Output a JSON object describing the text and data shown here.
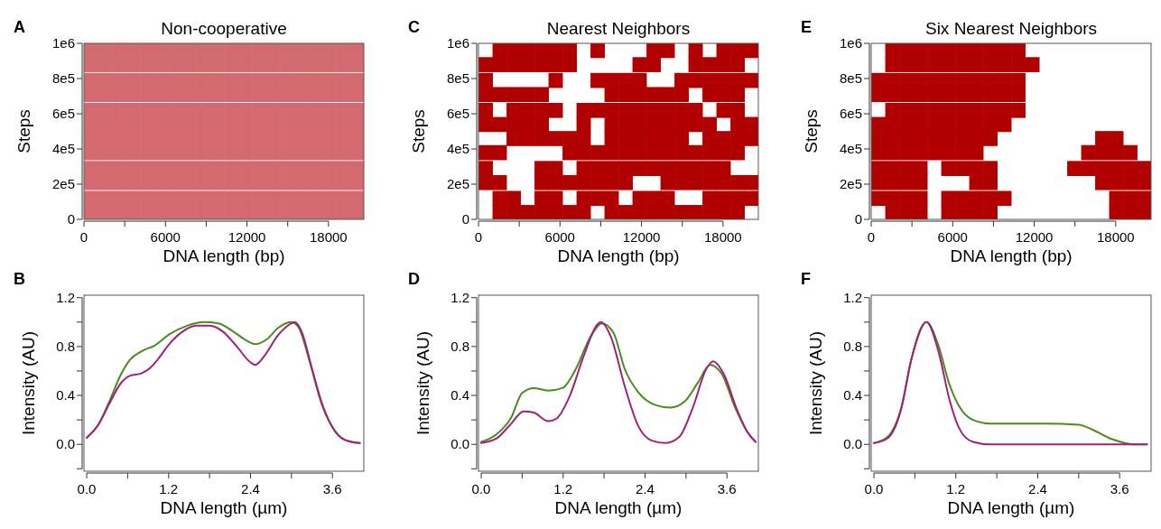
{
  "chart_data": [
    {
      "type": "scatter",
      "marker": "square",
      "title": "Non-cooperative",
      "xlabel": "DNA length (bp)",
      "ylabel": "Steps",
      "annotations": [
        "A"
      ],
      "xlim": [
        0,
        20600
      ],
      "ylim": [
        0,
        1000000
      ],
      "xticks": [
        0,
        {
          "value": 3000,
          "label": null
        },
        6000,
        {
          "value": 9000,
          "label": null
        },
        12000,
        {
          "value": 15000,
          "label": null
        },
        18000
      ],
      "yticks": [
        0,
        {
          "value": 200000,
          "label": "2e5"
        },
        {
          "value": 400000,
          "label": "4e5"
        },
        {
          "value": 600000,
          "label": "6e5"
        },
        {
          "value": 800000,
          "label": "8e5"
        },
        {
          "value": 1000000,
          "label": "1e6"
        }
      ],
      "x": [
        520,
        1550,
        2580,
        3610,
        4640,
        5670,
        6700,
        7730,
        8760,
        9790,
        10820,
        11850,
        12880,
        13910,
        14940,
        15970,
        17000,
        18030,
        19060,
        20090
      ],
      "series": [
        {
          "color": "#d26a70",
          "values": [
            960000,
            960000,
            960000,
            960000,
            960000,
            960000,
            960000,
            960000,
            960000,
            960000,
            960000,
            960000,
            960000,
            960000,
            960000,
            960000,
            960000,
            960000,
            960000,
            960000
          ]
        },
        {
          "color": "#d26a70",
          "values": [
            880000,
            880000,
            880000,
            880000,
            880000,
            880000,
            880000,
            880000,
            880000,
            880000,
            880000,
            880000,
            880000,
            880000,
            880000,
            880000,
            880000,
            880000,
            880000,
            880000
          ]
        },
        {
          "color": "#d26a70",
          "values": [
            790000,
            790000,
            790000,
            790000,
            790000,
            790000,
            790000,
            790000,
            790000,
            790000,
            790000,
            790000,
            790000,
            790000,
            790000,
            790000,
            790000,
            790000,
            790000,
            790000
          ]
        },
        {
          "color": "#d26a70",
          "values": [
            710000,
            710000,
            710000,
            710000,
            710000,
            710000,
            710000,
            710000,
            710000,
            710000,
            710000,
            710000,
            710000,
            710000,
            710000,
            710000,
            710000,
            710000,
            710000,
            710000
          ]
        },
        {
          "color": "#d26a70",
          "values": [
            620000,
            620000,
            620000,
            620000,
            620000,
            620000,
            620000,
            620000,
            620000,
            620000,
            620000,
            620000,
            620000,
            620000,
            620000,
            620000,
            620000,
            620000,
            620000,
            620000
          ]
        },
        {
          "color": "#d26a70",
          "values": [
            540000,
            540000,
            540000,
            540000,
            540000,
            540000,
            540000,
            540000,
            540000,
            540000,
            540000,
            540000,
            540000,
            540000,
            540000,
            540000,
            540000,
            540000,
            540000,
            540000
          ]
        },
        {
          "color": "#d26a70",
          "values": [
            460000,
            460000,
            460000,
            460000,
            460000,
            460000,
            460000,
            460000,
            460000,
            460000,
            460000,
            460000,
            460000,
            460000,
            460000,
            460000,
            460000,
            460000,
            460000,
            460000
          ]
        },
        {
          "color": "#d26a70",
          "values": [
            380000,
            380000,
            380000,
            380000,
            380000,
            380000,
            380000,
            380000,
            380000,
            380000,
            380000,
            380000,
            380000,
            380000,
            380000,
            380000,
            380000,
            380000,
            380000,
            380000
          ]
        },
        {
          "color": "#d26a70",
          "values": [
            290000,
            290000,
            290000,
            290000,
            290000,
            290000,
            290000,
            290000,
            290000,
            290000,
            290000,
            290000,
            290000,
            290000,
            290000,
            290000,
            290000,
            290000,
            290000,
            290000
          ]
        },
        {
          "color": "#d26a70",
          "values": [
            210000,
            210000,
            210000,
            210000,
            210000,
            210000,
            210000,
            210000,
            210000,
            210000,
            210000,
            210000,
            210000,
            210000,
            210000,
            210000,
            210000,
            210000,
            210000,
            210000
          ]
        },
        {
          "color": "#d26a70",
          "values": [
            120000,
            120000,
            120000,
            120000,
            120000,
            120000,
            120000,
            120000,
            120000,
            120000,
            120000,
            120000,
            120000,
            120000,
            120000,
            120000,
            120000,
            120000,
            120000,
            120000
          ]
        },
        {
          "color": "#d26a70",
          "values": [
            40000,
            40000,
            40000,
            40000,
            40000,
            40000,
            40000,
            40000,
            40000,
            40000,
            40000,
            40000,
            40000,
            40000,
            40000,
            40000,
            40000,
            40000,
            40000,
            40000
          ]
        }
      ]
    },
    {
      "type": "scatter",
      "marker": "square",
      "title": "Nearest Neighbors",
      "xlabel": "DNA length (bp)",
      "ylabel": "Steps",
      "annotations": [
        "C"
      ],
      "xlim": [
        0,
        20600
      ],
      "ylim": [
        0,
        1000000
      ],
      "xticks": [
        0,
        {
          "value": 3000,
          "label": null
        },
        6000,
        {
          "value": 9000,
          "label": null
        },
        12000,
        {
          "value": 15000,
          "label": null
        },
        18000
      ],
      "yticks": [
        0,
        {
          "value": 200000,
          "label": "2e5"
        },
        {
          "value": 400000,
          "label": "4e5"
        },
        {
          "value": 600000,
          "label": "6e5"
        },
        {
          "value": 800000,
          "label": "8e5"
        },
        {
          "value": 1000000,
          "label": "1e6"
        }
      ],
      "series": [
        {
          "color": "#b00000",
          "x": [
            1550,
            2580,
            3610,
            4640,
            5670,
            6700,
            8760,
            12880,
            13910,
            15970,
            18030,
            19060,
            20090
          ],
          "values": [
            960000,
            960000,
            960000,
            960000,
            960000,
            960000,
            960000,
            960000,
            960000,
            960000,
            960000,
            960000,
            960000
          ]
        },
        {
          "color": "#b00000",
          "x": [
            520,
            1550,
            2580,
            3610,
            4640,
            5670,
            6700,
            11850,
            12880,
            15970,
            17000,
            18030,
            19060
          ],
          "values": [
            880000,
            880000,
            880000,
            880000,
            880000,
            880000,
            880000,
            880000,
            880000,
            880000,
            880000,
            880000,
            880000
          ]
        },
        {
          "color": "#b00000",
          "x": [
            520,
            5670,
            8760,
            9790,
            10820,
            11850,
            14940,
            15970,
            17000,
            18030,
            19060,
            20090
          ],
          "values": [
            790000,
            790000,
            790000,
            790000,
            790000,
            790000,
            790000,
            790000,
            790000,
            790000,
            790000,
            790000
          ]
        },
        {
          "color": "#b00000",
          "x": [
            520,
            1550,
            2580,
            3610,
            4640,
            9790,
            10820,
            11850,
            12880,
            13910,
            14940,
            17000,
            18030,
            19060
          ],
          "values": [
            710000,
            710000,
            710000,
            710000,
            710000,
            710000,
            710000,
            710000,
            710000,
            710000,
            710000,
            710000,
            710000,
            710000
          ]
        },
        {
          "color": "#b00000",
          "x": [
            520,
            2580,
            3610,
            4640,
            5670,
            7730,
            8760,
            9790,
            10820,
            11850,
            12880,
            13910,
            14940,
            15970,
            18030,
            19060
          ],
          "values": [
            620000,
            620000,
            620000,
            620000,
            620000,
            620000,
            620000,
            620000,
            620000,
            620000,
            620000,
            620000,
            620000,
            620000,
            620000,
            620000
          ]
        },
        {
          "color": "#b00000",
          "x": [
            520,
            1550,
            2580,
            3610,
            4640,
            7730,
            9790,
            10820,
            11850,
            12880,
            13910,
            14940,
            15970,
            17000,
            19060,
            20090
          ],
          "values": [
            540000,
            540000,
            540000,
            540000,
            540000,
            540000,
            540000,
            540000,
            540000,
            540000,
            540000,
            540000,
            540000,
            540000,
            540000,
            540000
          ]
        },
        {
          "color": "#b00000",
          "x": [
            2580,
            3610,
            4640,
            5670,
            6700,
            7730,
            9790,
            10820,
            11850,
            12880,
            13910,
            14940,
            17000,
            18030,
            19060,
            20090
          ],
          "values": [
            460000,
            460000,
            460000,
            460000,
            460000,
            460000,
            460000,
            460000,
            460000,
            460000,
            460000,
            460000,
            460000,
            460000,
            460000,
            460000
          ]
        },
        {
          "color": "#b00000",
          "x": [
            520,
            1550,
            6700,
            7730,
            8760,
            9790,
            10820,
            11850,
            12880,
            13910,
            14940,
            15970,
            17000,
            18030,
            19060
          ],
          "values": [
            380000,
            380000,
            380000,
            380000,
            380000,
            380000,
            380000,
            380000,
            380000,
            380000,
            380000,
            380000,
            380000,
            380000,
            380000
          ]
        },
        {
          "color": "#b00000",
          "x": [
            520,
            4640,
            5670,
            7730,
            8760,
            9790,
            10820,
            11850,
            12880,
            13910,
            14940,
            15970,
            17000,
            18030
          ],
          "values": [
            290000,
            290000,
            290000,
            290000,
            290000,
            290000,
            290000,
            290000,
            290000,
            290000,
            290000,
            290000,
            290000,
            290000
          ]
        },
        {
          "color": "#b00000",
          "x": [
            520,
            1550,
            4640,
            5670,
            6700,
            7730,
            8760,
            9790,
            10820,
            13910,
            14940,
            15970,
            17000,
            18030,
            19060,
            20090
          ],
          "values": [
            210000,
            210000,
            210000,
            210000,
            210000,
            210000,
            210000,
            210000,
            210000,
            210000,
            210000,
            210000,
            210000,
            210000,
            210000,
            210000
          ]
        },
        {
          "color": "#b00000",
          "x": [
            1550,
            2580,
            4640,
            5670,
            7730,
            8760,
            9790,
            11850,
            12880,
            13910,
            17000,
            18030,
            19060,
            20090
          ],
          "values": [
            120000,
            120000,
            120000,
            120000,
            120000,
            120000,
            120000,
            120000,
            120000,
            120000,
            120000,
            120000,
            120000,
            120000
          ]
        },
        {
          "color": "#b00000",
          "x": [
            1550,
            2580,
            3610,
            4640,
            5670,
            6700,
            7730,
            9790,
            10820,
            11850,
            12880,
            13910,
            14940,
            15970,
            17000,
            18030,
            19060
          ],
          "values": [
            40000,
            40000,
            40000,
            40000,
            40000,
            40000,
            40000,
            40000,
            40000,
            40000,
            40000,
            40000,
            40000,
            40000,
            40000,
            40000,
            40000
          ]
        }
      ]
    },
    {
      "type": "scatter",
      "marker": "square",
      "title": "Six Nearest Neighbors",
      "xlabel": "DNA length (bp)",
      "ylabel": "Steps",
      "annotations": [
        "E"
      ],
      "xlim": [
        0,
        20600
      ],
      "ylim": [
        0,
        1000000
      ],
      "xticks": [
        0,
        {
          "value": 3000,
          "label": null
        },
        6000,
        {
          "value": 9000,
          "label": null
        },
        12000,
        {
          "value": 15000,
          "label": null
        },
        18000
      ],
      "yticks": [
        0,
        {
          "value": 200000,
          "label": "2e5"
        },
        {
          "value": 400000,
          "label": "4e5"
        },
        {
          "value": 600000,
          "label": "6e5"
        },
        {
          "value": 800000,
          "label": "8e5"
        },
        {
          "value": 1000000,
          "label": "1e6"
        }
      ],
      "series": [
        {
          "color": "#b00000",
          "x": [
            1550,
            2580,
            3610,
            4640,
            5670,
            6700,
            7730,
            8760,
            9790,
            10820
          ],
          "values": [
            960000,
            960000,
            960000,
            960000,
            960000,
            960000,
            960000,
            960000,
            960000,
            960000
          ]
        },
        {
          "color": "#b00000",
          "x": [
            1550,
            2580,
            3610,
            4640,
            5670,
            6700,
            7730,
            8760,
            9790,
            10820,
            11850
          ],
          "values": [
            880000,
            880000,
            880000,
            880000,
            880000,
            880000,
            880000,
            880000,
            880000,
            880000,
            880000
          ]
        },
        {
          "color": "#b00000",
          "x": [
            520,
            1550,
            2580,
            3610,
            4640,
            5670,
            6700,
            7730,
            8760,
            9790,
            10820
          ],
          "values": [
            790000,
            790000,
            790000,
            790000,
            790000,
            790000,
            790000,
            790000,
            790000,
            790000,
            790000
          ]
        },
        {
          "color": "#b00000",
          "x": [
            520,
            1550,
            2580,
            3610,
            4640,
            5670,
            6700,
            7730,
            8760,
            9790,
            10820
          ],
          "values": [
            710000,
            710000,
            710000,
            710000,
            710000,
            710000,
            710000,
            710000,
            710000,
            710000,
            710000
          ]
        },
        {
          "color": "#b00000",
          "x": [
            1550,
            2580,
            3610,
            4640,
            5670,
            6700,
            7730,
            8760,
            9790,
            10820
          ],
          "values": [
            620000,
            620000,
            620000,
            620000,
            620000,
            620000,
            620000,
            620000,
            620000,
            620000
          ]
        },
        {
          "color": "#b00000",
          "x": [
            520,
            1550,
            2580,
            3610,
            4640,
            5670,
            6700,
            7730,
            8760,
            9790
          ],
          "values": [
            540000,
            540000,
            540000,
            540000,
            540000,
            540000,
            540000,
            540000,
            540000,
            540000
          ]
        },
        {
          "color": "#b00000",
          "x": [
            520,
            1550,
            2580,
            3610,
            4640,
            5670,
            6700,
            7730,
            8760,
            17000,
            18030
          ],
          "values": [
            460000,
            460000,
            460000,
            460000,
            460000,
            460000,
            460000,
            460000,
            460000,
            460000,
            460000
          ]
        },
        {
          "color": "#b00000",
          "x": [
            520,
            1550,
            2580,
            3610,
            4640,
            5670,
            6700,
            7730,
            15970,
            17000,
            18030,
            19060
          ],
          "values": [
            380000,
            380000,
            380000,
            380000,
            380000,
            380000,
            380000,
            380000,
            380000,
            380000,
            380000,
            380000
          ]
        },
        {
          "color": "#b00000",
          "x": [
            520,
            1550,
            2580,
            3610,
            5670,
            6700,
            7730,
            8760,
            14940,
            15970,
            17000,
            18030,
            19060,
            20090
          ],
          "values": [
            290000,
            290000,
            290000,
            290000,
            290000,
            290000,
            290000,
            290000,
            290000,
            290000,
            290000,
            290000,
            290000,
            290000
          ]
        },
        {
          "color": "#b00000",
          "x": [
            520,
            1550,
            2580,
            3610,
            7730,
            8760,
            17000,
            18030,
            19060,
            20090
          ],
          "values": [
            210000,
            210000,
            210000,
            210000,
            210000,
            210000,
            210000,
            210000,
            210000,
            210000
          ]
        },
        {
          "color": "#b00000",
          "x": [
            520,
            1550,
            2580,
            3610,
            5670,
            6700,
            7730,
            8760,
            9790,
            18030,
            19060,
            20090
          ],
          "values": [
            120000,
            120000,
            120000,
            120000,
            120000,
            120000,
            120000,
            120000,
            120000,
            120000,
            120000,
            120000
          ]
        },
        {
          "color": "#b00000",
          "x": [
            1550,
            2580,
            3610,
            5670,
            6700,
            7730,
            8760,
            18030,
            19060,
            20090
          ],
          "values": [
            40000,
            40000,
            40000,
            40000,
            40000,
            40000,
            40000,
            40000,
            40000,
            40000
          ]
        }
      ]
    },
    {
      "type": "line",
      "xlabel": "DNA length (µm)",
      "ylabel": "Intensity (AU)",
      "annotations": [
        "B"
      ],
      "xlim": [
        -0.04,
        4.06
      ],
      "ylim": [
        -0.22,
        1.22
      ],
      "xticks": [
        {
          "value": 0,
          "label": "0.0"
        },
        {
          "value": 0.6,
          "label": null
        },
        1.2,
        {
          "value": 1.8,
          "label": null
        },
        2.4,
        {
          "value": 3.0,
          "label": null
        },
        3.6
      ],
      "yticks": [
        {
          "value": -0.2,
          "label": null
        },
        {
          "value": 0,
          "label": "0.0"
        },
        {
          "value": 0.2,
          "label": null
        },
        0.4,
        {
          "value": 0.6,
          "label": null
        },
        0.8,
        {
          "value": 1.0,
          "label": null
        },
        1.2
      ],
      "series": [
        {
          "color": "#4b8a1c",
          "x": [
            0,
            0.17,
            0.33,
            0.5,
            0.63,
            0.8,
            1.0,
            1.21,
            1.47,
            1.72,
            1.93,
            2.13,
            2.34,
            2.47,
            2.64,
            2.8,
            2.99,
            3.1,
            3.26,
            3.43,
            3.6,
            3.77,
            4.0
          ],
          "values": [
            0.054,
            0.16,
            0.35,
            0.57,
            0.69,
            0.76,
            0.81,
            0.9,
            0.97,
            1.0,
            0.99,
            0.93,
            0.85,
            0.82,
            0.86,
            0.95,
            1.0,
            0.96,
            0.69,
            0.35,
            0.14,
            0.04,
            0.01
          ]
        },
        {
          "color": "#a3207c",
          "x": [
            0,
            0.17,
            0.33,
            0.5,
            0.63,
            0.8,
            0.92,
            1.05,
            1.21,
            1.4,
            1.6,
            1.8,
            2.0,
            2.2,
            2.4,
            2.47,
            2.6,
            2.8,
            3.0,
            3.05,
            3.15,
            3.3,
            3.45,
            3.6,
            3.77,
            4.0
          ],
          "values": [
            0.054,
            0.16,
            0.33,
            0.5,
            0.56,
            0.58,
            0.62,
            0.7,
            0.82,
            0.92,
            0.97,
            0.97,
            0.92,
            0.8,
            0.67,
            0.65,
            0.72,
            0.89,
            0.99,
            1.0,
            0.92,
            0.62,
            0.33,
            0.14,
            0.04,
            0.01
          ]
        }
      ]
    },
    {
      "type": "line",
      "xlabel": "DNA length (µm)",
      "ylabel": "Intensity (AU)",
      "annotations": [
        "D"
      ],
      "xlim": [
        -0.04,
        4.06
      ],
      "ylim": [
        -0.22,
        1.22
      ],
      "xticks": [
        {
          "value": 0,
          "label": "0.0"
        },
        {
          "value": 0.6,
          "label": null
        },
        1.2,
        {
          "value": 1.8,
          "label": null
        },
        2.4,
        {
          "value": 3.0,
          "label": null
        },
        3.6
      ],
      "yticks": [
        {
          "value": -0.2,
          "label": null
        },
        {
          "value": 0,
          "label": "0.0"
        },
        {
          "value": 0.2,
          "label": null
        },
        0.4,
        {
          "value": 0.6,
          "label": null
        },
        0.8,
        {
          "value": 1.0,
          "label": null
        },
        1.2
      ],
      "series": [
        {
          "color": "#4b8a1c",
          "x": [
            0,
            0.23,
            0.44,
            0.6,
            0.77,
            0.98,
            1.19,
            1.39,
            1.6,
            1.77,
            1.94,
            2.1,
            2.31,
            2.56,
            2.77,
            2.98,
            3.18,
            3.35,
            3.52,
            3.72,
            3.89,
            4.02
          ],
          "values": [
            0.02,
            0.085,
            0.22,
            0.42,
            0.46,
            0.44,
            0.46,
            0.62,
            0.88,
            0.99,
            0.91,
            0.62,
            0.42,
            0.32,
            0.3,
            0.35,
            0.51,
            0.65,
            0.58,
            0.3,
            0.11,
            0.02
          ]
        },
        {
          "color": "#a3207c",
          "x": [
            0,
            0.23,
            0.44,
            0.62,
            0.77,
            0.98,
            1.1,
            1.3,
            1.5,
            1.7,
            1.75,
            1.9,
            2.1,
            2.3,
            2.5,
            2.7,
            2.9,
            3.1,
            3.3,
            3.4,
            3.55,
            3.75,
            3.9,
            4.02
          ],
          "values": [
            0.01,
            0.05,
            0.17,
            0.27,
            0.26,
            0.19,
            0.21,
            0.4,
            0.72,
            0.98,
            1.0,
            0.88,
            0.48,
            0.15,
            0.03,
            0.01,
            0.06,
            0.3,
            0.62,
            0.68,
            0.58,
            0.28,
            0.1,
            0.02
          ]
        }
      ]
    },
    {
      "type": "line",
      "xlabel": "DNA length (µm)",
      "ylabel": "Intensity (AU)",
      "annotations": [
        "F"
      ],
      "xlim": [
        -0.04,
        4.06
      ],
      "ylim": [
        -0.22,
        1.22
      ],
      "xticks": [
        {
          "value": 0,
          "label": "0.0"
        },
        {
          "value": 0.6,
          "label": null
        },
        1.2,
        {
          "value": 1.8,
          "label": null
        },
        2.4,
        {
          "value": 3.0,
          "label": null
        },
        3.6
      ],
      "yticks": [
        {
          "value": -0.2,
          "label": null
        },
        {
          "value": 0,
          "label": "0.0"
        },
        {
          "value": 0.2,
          "label": null
        },
        0.4,
        {
          "value": 0.6,
          "label": null
        },
        0.8,
        {
          "value": 1.0,
          "label": null
        },
        1.2
      ],
      "series": [
        {
          "color": "#4b8a1c",
          "x": [
            0,
            0.2,
            0.4,
            0.55,
            0.77,
            0.95,
            1.1,
            1.25,
            1.45,
            1.7,
            2.5,
            3.0,
            3.2,
            3.5,
            3.8,
            4.0
          ],
          "values": [
            0.01,
            0.06,
            0.3,
            0.7,
            1.0,
            0.8,
            0.5,
            0.31,
            0.2,
            0.17,
            0.17,
            0.16,
            0.12,
            0.04,
            0,
            0
          ]
        },
        {
          "color": "#a3207c",
          "x": [
            0,
            0.2,
            0.4,
            0.55,
            0.77,
            0.95,
            1.1,
            1.25,
            1.45,
            1.7,
            4.0
          ],
          "values": [
            0.01,
            0.05,
            0.29,
            0.7,
            1.0,
            0.75,
            0.38,
            0.13,
            0.02,
            0,
            0
          ]
        }
      ]
    }
  ]
}
